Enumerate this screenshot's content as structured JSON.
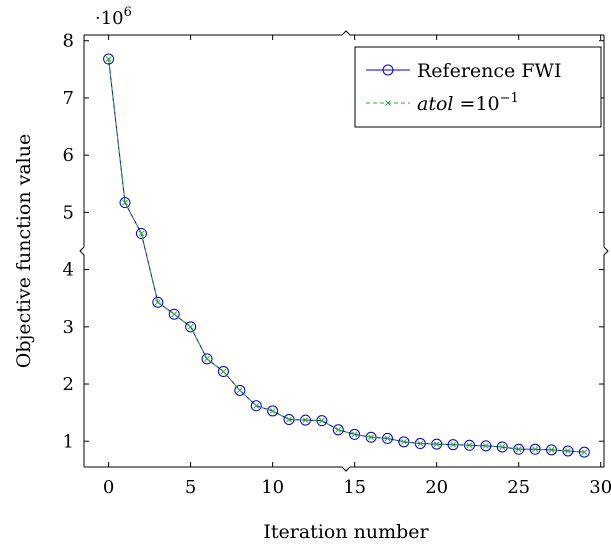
{
  "chart_data": {
    "type": "line",
    "xlabel": "Iteration number",
    "ylabel": "Objective function value",
    "y_multiplier_label": "·10",
    "y_multiplier_exponent": "6",
    "xlim": [
      -1.5,
      30.2
    ],
    "ylim": [
      0.55,
      8.1
    ],
    "x_ticks": [
      0,
      5,
      10,
      15,
      20,
      25,
      30
    ],
    "y_ticks": [
      1,
      2,
      3,
      4,
      5,
      6,
      7,
      8
    ],
    "grid": false,
    "legend_position": "top-right",
    "axis_break": true,
    "x": [
      0,
      1,
      2,
      3,
      4,
      5,
      6,
      7,
      8,
      9,
      10,
      11,
      12,
      13,
      14,
      15,
      16,
      17,
      18,
      19,
      20,
      21,
      22,
      23,
      24,
      25,
      26,
      27,
      28,
      29
    ],
    "series": [
      {
        "name": "Reference FWI",
        "color": "#0000cc",
        "marker": "circle",
        "line_style": "solid",
        "values": [
          7.68,
          5.17,
          4.63,
          3.43,
          3.22,
          3.0,
          2.44,
          2.22,
          1.89,
          1.62,
          1.53,
          1.38,
          1.37,
          1.36,
          1.2,
          1.12,
          1.07,
          1.05,
          0.99,
          0.96,
          0.95,
          0.94,
          0.93,
          0.92,
          0.9,
          0.86,
          0.86,
          0.85,
          0.83,
          0.81
        ]
      },
      {
        "name_prefix": "atol",
        "name_suffix": " =10",
        "name_exponent": "−1",
        "color": "#33aa33",
        "marker": "x",
        "line_style": "dashed",
        "values": [
          7.68,
          5.17,
          4.63,
          3.43,
          3.22,
          3.0,
          2.44,
          2.22,
          1.89,
          1.62,
          1.53,
          1.38,
          1.37,
          1.36,
          1.2,
          1.12,
          1.07,
          1.05,
          0.99,
          0.96,
          0.95,
          0.94,
          0.93,
          0.92,
          0.9,
          0.86,
          0.86,
          0.85,
          0.83,
          0.81
        ]
      }
    ]
  }
}
